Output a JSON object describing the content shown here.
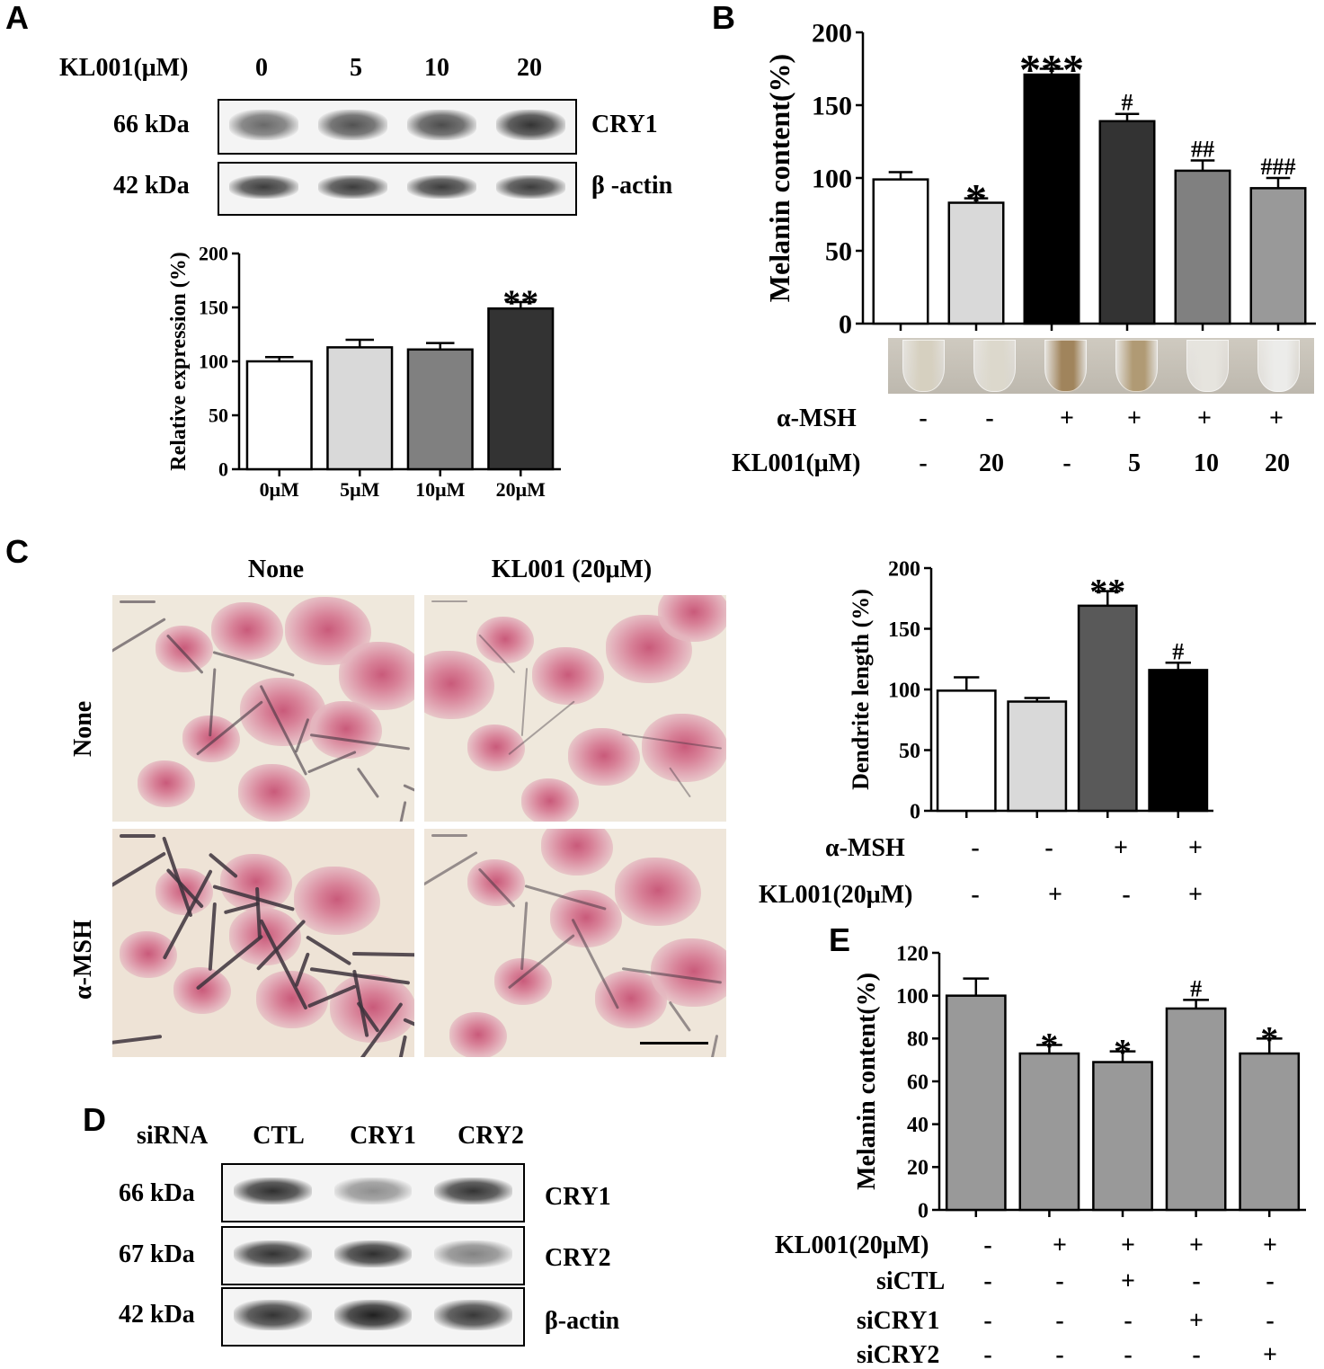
{
  "panels": {
    "A": "A",
    "B": "B",
    "C": "C",
    "D": "D",
    "E": "E"
  },
  "panel_a": {
    "treatment_label": "KL001(μM)",
    "doses": [
      "0",
      "5",
      "10",
      "20"
    ],
    "bands": [
      {
        "kda": "66 kDa",
        "protein": "CRY1",
        "intensity": [
          0.62,
          0.72,
          0.75,
          0.86
        ]
      },
      {
        "kda": "42 kDa",
        "protein": "β -actin",
        "intensity": [
          0.82,
          0.82,
          0.82,
          0.82
        ]
      }
    ]
  },
  "panel_b_conditions": {
    "tube_colors": [
      "#d6d0c0",
      "#dcd8cc",
      "#a0845c",
      "#b09a74",
      "#e6e4de",
      "#ececea"
    ],
    "rows": [
      {
        "label": "α-MSH",
        "values": [
          "-",
          "-",
          "+",
          "+",
          "+",
          "+"
        ]
      },
      {
        "label": "KL001(μM)",
        "values": [
          "-",
          "20",
          "-",
          "5",
          "10",
          "20"
        ]
      }
    ]
  },
  "panel_c_images": {
    "col_labels": [
      "None",
      "KL001 (20μM)"
    ],
    "row_labels": [
      "None",
      "α-MSH"
    ]
  },
  "panel_c_conditions": {
    "rows": [
      {
        "label": "α-MSH",
        "values": [
          "-",
          "-",
          "+",
          "+"
        ]
      },
      {
        "label": "KL001(20μM)",
        "values": [
          "-",
          "+",
          "-",
          "+"
        ]
      }
    ]
  },
  "panel_d": {
    "header_label": "siRNA",
    "lanes": [
      "CTL",
      "CRY1",
      "CRY2"
    ],
    "bands": [
      {
        "kda": "66 kDa",
        "protein": "CRY1",
        "intensity": [
          0.88,
          0.45,
          0.86
        ]
      },
      {
        "kda": "67 kDa",
        "protein": "CRY2",
        "intensity": [
          0.86,
          0.88,
          0.5
        ]
      },
      {
        "kda": "42 kDa",
        "protein": "β-actin",
        "intensity": [
          0.86,
          0.95,
          0.84
        ]
      }
    ]
  },
  "panel_e_conditions": {
    "rows": [
      {
        "label": "KL001(20μM)",
        "values": [
          "-",
          "+",
          "+",
          "+",
          "+"
        ]
      },
      {
        "label": "siCTL",
        "values": [
          "-",
          "-",
          "+",
          "-",
          "-"
        ]
      },
      {
        "label": "siCRY1",
        "values": [
          "-",
          "-",
          "-",
          "+",
          "-"
        ]
      },
      {
        "label": "siCRY2",
        "values": [
          "-",
          "-",
          "-",
          "-",
          "+"
        ]
      }
    ]
  },
  "chart_data": [
    {
      "id": "A",
      "type": "bar",
      "ylabel": "Relative expression (%)",
      "categories": [
        "0μM",
        "5μM",
        "10μM",
        "20μM"
      ],
      "values": [
        100,
        113,
        111,
        149
      ],
      "errors": [
        4,
        7,
        6,
        6
      ],
      "annotations": [
        "",
        "",
        "",
        "**"
      ],
      "colors": [
        "#ffffff",
        "#d9d9d9",
        "#808080",
        "#333333"
      ],
      "ylim": [
        0,
        200
      ],
      "yticks": [
        0,
        50,
        100,
        150,
        200
      ]
    },
    {
      "id": "B",
      "type": "bar",
      "ylabel": "Melanin content(%)",
      "categories": [
        "",
        "",
        "",
        "",
        "",
        ""
      ],
      "values": [
        99,
        83,
        171,
        139,
        105,
        93
      ],
      "errors": [
        5,
        3,
        4,
        5,
        7,
        7
      ],
      "annotations": [
        "",
        "*",
        "***",
        "#",
        "##",
        "###"
      ],
      "colors": [
        "#ffffff",
        "#d9d9d9",
        "#000000",
        "#333333",
        "#808080",
        "#999999"
      ],
      "ylim": [
        0,
        200
      ],
      "yticks": [
        0,
        50,
        100,
        150,
        200
      ]
    },
    {
      "id": "C",
      "type": "bar",
      "ylabel": "Dendrite length (%)",
      "categories": [
        "",
        "",
        "",
        ""
      ],
      "values": [
        99,
        90,
        169,
        116
      ],
      "errors": [
        11,
        3,
        12,
        6
      ],
      "annotations": [
        "",
        "",
        "**",
        "#"
      ],
      "colors": [
        "#ffffff",
        "#d9d9d9",
        "#595959",
        "#000000"
      ],
      "ylim": [
        0,
        200
      ],
      "yticks": [
        0,
        50,
        100,
        150,
        200
      ]
    },
    {
      "id": "E",
      "type": "bar",
      "ylabel": "Melanin content(%)",
      "categories": [
        "",
        "",
        "",
        "",
        ""
      ],
      "values": [
        100,
        73,
        69,
        94,
        73
      ],
      "errors": [
        8,
        4,
        5,
        4,
        7
      ],
      "annotations": [
        "",
        "*",
        "*",
        "#",
        "*"
      ],
      "colors": [
        "#999999",
        "#999999",
        "#999999",
        "#999999",
        "#999999"
      ],
      "ylim": [
        0,
        120
      ],
      "yticks": [
        0,
        20,
        40,
        60,
        80,
        100,
        120
      ]
    }
  ]
}
